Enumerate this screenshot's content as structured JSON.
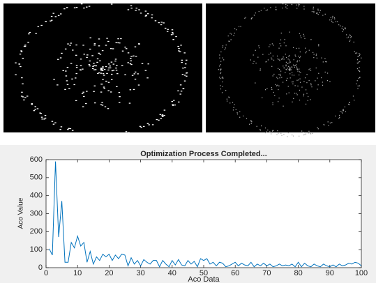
{
  "chart_data": {
    "type": "line",
    "title": "Optimization Process Completed...",
    "x_label": "Aco Data",
    "y_label": "Aco Value",
    "x": [
      1,
      2,
      3,
      4,
      5,
      6,
      7,
      8,
      9,
      10,
      11,
      12,
      13,
      14,
      15,
      16,
      17,
      18,
      19,
      20,
      21,
      22,
      23,
      24,
      25,
      26,
      27,
      28,
      29,
      30,
      31,
      32,
      33,
      34,
      35,
      36,
      37,
      38,
      39,
      40,
      41,
      42,
      43,
      44,
      45,
      46,
      47,
      48,
      49,
      50,
      51,
      52,
      53,
      54,
      55,
      56,
      57,
      58,
      59,
      60,
      61,
      62,
      63,
      64,
      65,
      66,
      67,
      68,
      69,
      70,
      71,
      72,
      73,
      74,
      75,
      76,
      77,
      78,
      79,
      80,
      81,
      82,
      83,
      84,
      85,
      86,
      87,
      88,
      89,
      90,
      91,
      92,
      93,
      94,
      95,
      96,
      97,
      98,
      99,
      100
    ],
    "values": [
      105,
      70,
      590,
      170,
      370,
      30,
      30,
      140,
      110,
      175,
      120,
      140,
      30,
      90,
      20,
      60,
      40,
      75,
      60,
      75,
      40,
      70,
      50,
      75,
      70,
      10,
      55,
      20,
      40,
      10,
      45,
      30,
      20,
      40,
      40,
      5,
      40,
      20,
      5,
      40,
      15,
      45,
      15,
      10,
      40,
      20,
      35,
      5,
      50,
      40,
      50,
      20,
      30,
      10,
      30,
      25,
      5,
      10,
      20,
      30,
      10,
      25,
      15,
      10,
      30,
      5,
      20,
      10,
      25,
      10,
      20,
      5,
      10,
      20,
      10,
      15,
      10,
      20,
      5,
      30,
      5,
      25,
      10,
      5,
      20,
      10,
      5,
      20,
      10,
      5,
      15,
      5,
      20,
      10,
      15,
      25,
      20,
      30,
      25,
      10
    ],
    "color": "#0072bd",
    "xlim": [
      0,
      100
    ],
    "xticks": [
      0,
      10,
      20,
      30,
      40,
      50,
      60,
      70,
      80,
      90,
      100
    ],
    "ylim": [
      0,
      600
    ],
    "yticks": [
      0,
      100,
      200,
      300,
      400,
      500,
      600
    ],
    "grid": false
  }
}
